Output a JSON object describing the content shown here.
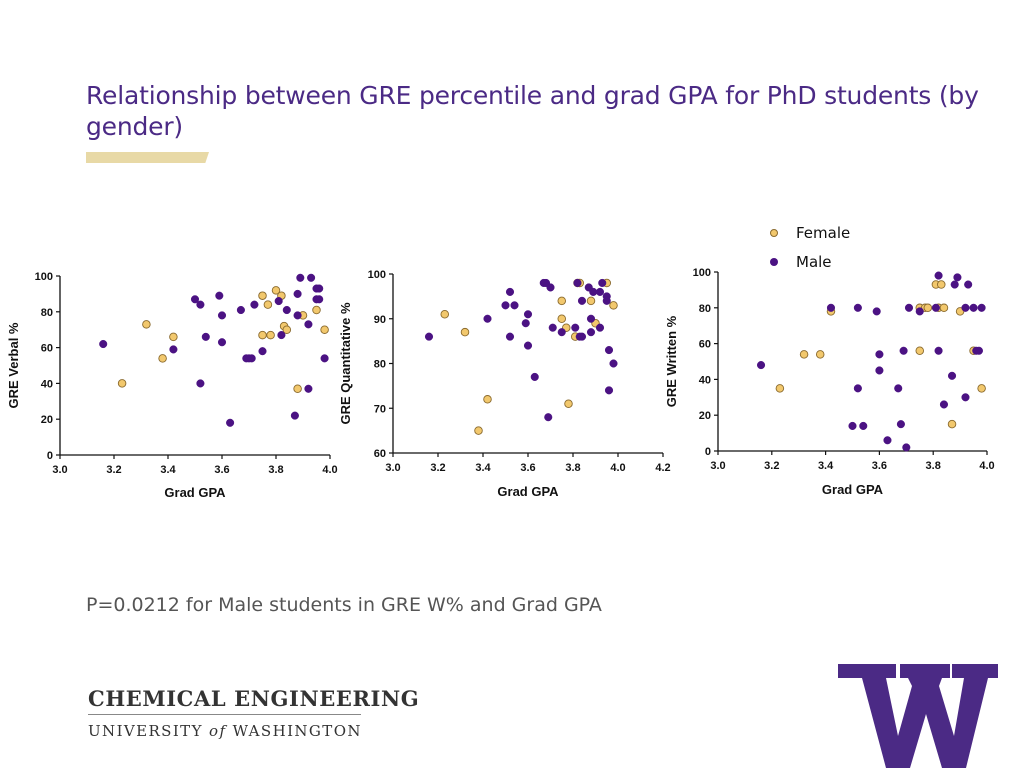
{
  "slide": {
    "title": "Relationship between GRE percentile and grad GPA for PhD students (by gender)",
    "pvalue_note": "P=0.0212 for Male students in GRE W% and Grad GPA",
    "footer_dept": "CHEMICAL ENGINEERING",
    "footer_univ_pre": "UNIVERSITY ",
    "footer_univ_of": "of",
    "footer_univ_post": " WASHINGTON",
    "logo_letter": "W"
  },
  "colors": {
    "title": "#4b2a85",
    "female": "#f2c86d",
    "female_stroke": "#8a6a2e",
    "male": "#4b1283",
    "accent_bar": "#e8d9a6",
    "logo": "#4b2a85"
  },
  "legend": {
    "female_label": "Female",
    "male_label": "Male"
  },
  "chart_data": [
    {
      "type": "scatter",
      "title": "",
      "xlabel": "Grad GPA",
      "ylabel": "GRE Verbal %",
      "xlim": [
        3.0,
        4.0
      ],
      "ylim": [
        0,
        100
      ],
      "xticks": [
        "3.0",
        "3.2",
        "3.4",
        "3.6",
        "3.8",
        "4.0"
      ],
      "yticks": [
        "0",
        "20",
        "40",
        "60",
        "80",
        "100"
      ],
      "series": [
        {
          "name": "Female",
          "points": [
            [
              3.23,
              40
            ],
            [
              3.32,
              73
            ],
            [
              3.38,
              54
            ],
            [
              3.42,
              66
            ],
            [
              3.75,
              89
            ],
            [
              3.75,
              67
            ],
            [
              3.77,
              84
            ],
            [
              3.78,
              67
            ],
            [
              3.8,
              92
            ],
            [
              3.82,
              89
            ],
            [
              3.83,
              72
            ],
            [
              3.84,
              70
            ],
            [
              3.88,
              37
            ],
            [
              3.9,
              78
            ],
            [
              3.95,
              81
            ],
            [
              3.98,
              70
            ]
          ]
        },
        {
          "name": "Male",
          "points": [
            [
              3.16,
              62
            ],
            [
              3.42,
              59
            ],
            [
              3.5,
              87
            ],
            [
              3.52,
              84
            ],
            [
              3.52,
              40
            ],
            [
              3.54,
              66
            ],
            [
              3.59,
              89
            ],
            [
              3.6,
              78
            ],
            [
              3.6,
              63
            ],
            [
              3.63,
              18
            ],
            [
              3.67,
              81
            ],
            [
              3.69,
              54
            ],
            [
              3.7,
              54
            ],
            [
              3.71,
              54
            ],
            [
              3.72,
              84
            ],
            [
              3.75,
              58
            ],
            [
              3.81,
              86
            ],
            [
              3.82,
              67
            ],
            [
              3.84,
              81
            ],
            [
              3.87,
              22
            ],
            [
              3.88,
              90
            ],
            [
              3.88,
              78
            ],
            [
              3.89,
              99
            ],
            [
              3.92,
              73
            ],
            [
              3.92,
              37
            ],
            [
              3.93,
              99
            ],
            [
              3.95,
              87
            ],
            [
              3.95,
              93
            ],
            [
              3.96,
              93
            ],
            [
              3.96,
              87
            ],
            [
              3.98,
              54
            ]
          ]
        }
      ]
    },
    {
      "type": "scatter",
      "title": "",
      "xlabel": "Grad GPA",
      "ylabel": "GRE Quantitative %",
      "xlim": [
        3.0,
        4.2
      ],
      "ylim": [
        60,
        100
      ],
      "xticks": [
        "3.0",
        "3.2",
        "3.4",
        "3.6",
        "3.8",
        "4.0",
        "4.2"
      ],
      "yticks": [
        "60",
        "70",
        "80",
        "90",
        "100"
      ],
      "series": [
        {
          "name": "Female",
          "points": [
            [
              3.23,
              91
            ],
            [
              3.32,
              87
            ],
            [
              3.38,
              65
            ],
            [
              3.42,
              72
            ],
            [
              3.75,
              94
            ],
            [
              3.75,
              90
            ],
            [
              3.77,
              88
            ],
            [
              3.78,
              71
            ],
            [
              3.81,
              86
            ],
            [
              3.82,
              98
            ],
            [
              3.83,
              98
            ],
            [
              3.88,
              94
            ],
            [
              3.9,
              89
            ],
            [
              3.95,
              98
            ],
            [
              3.98,
              93
            ]
          ]
        },
        {
          "name": "Male",
          "points": [
            [
              3.16,
              86
            ],
            [
              3.42,
              90
            ],
            [
              3.5,
              93
            ],
            [
              3.52,
              96
            ],
            [
              3.52,
              86
            ],
            [
              3.54,
              93
            ],
            [
              3.59,
              89
            ],
            [
              3.6,
              91
            ],
            [
              3.6,
              84
            ],
            [
              3.63,
              77
            ],
            [
              3.67,
              98
            ],
            [
              3.68,
              98
            ],
            [
              3.69,
              68
            ],
            [
              3.7,
              97
            ],
            [
              3.71,
              88
            ],
            [
              3.75,
              87
            ],
            [
              3.81,
              88
            ],
            [
              3.82,
              98
            ],
            [
              3.83,
              86
            ],
            [
              3.84,
              94
            ],
            [
              3.84,
              86
            ],
            [
              3.87,
              97
            ],
            [
              3.88,
              87
            ],
            [
              3.88,
              90
            ],
            [
              3.89,
              96
            ],
            [
              3.92,
              96
            ],
            [
              3.92,
              88
            ],
            [
              3.93,
              98
            ],
            [
              3.95,
              95
            ],
            [
              3.95,
              94
            ],
            [
              3.96,
              83
            ],
            [
              3.96,
              74
            ],
            [
              3.98,
              80
            ]
          ]
        }
      ]
    },
    {
      "type": "scatter",
      "title": "",
      "xlabel": "Grad GPA",
      "ylabel": "GRE Written %",
      "xlim": [
        3.0,
        4.0
      ],
      "ylim": [
        0,
        100
      ],
      "xticks": [
        "3.0",
        "3.2",
        "3.4",
        "3.6",
        "3.8",
        "4.0"
      ],
      "yticks": [
        "0",
        "20",
        "40",
        "60",
        "80",
        "100"
      ],
      "series": [
        {
          "name": "Female",
          "points": [
            [
              3.23,
              35
            ],
            [
              3.32,
              54
            ],
            [
              3.38,
              54
            ],
            [
              3.42,
              78
            ],
            [
              3.75,
              80
            ],
            [
              3.75,
              56
            ],
            [
              3.77,
              80
            ],
            [
              3.78,
              80
            ],
            [
              3.81,
              93
            ],
            [
              3.82,
              80
            ],
            [
              3.83,
              93
            ],
            [
              3.84,
              80
            ],
            [
              3.87,
              15
            ],
            [
              3.9,
              78
            ],
            [
              3.95,
              56
            ],
            [
              3.98,
              35
            ]
          ]
        },
        {
          "name": "Male",
          "points": [
            [
              3.16,
              48
            ],
            [
              3.42,
              80
            ],
            [
              3.5,
              14
            ],
            [
              3.52,
              35
            ],
            [
              3.52,
              80
            ],
            [
              3.54,
              14
            ],
            [
              3.59,
              78
            ],
            [
              3.6,
              54
            ],
            [
              3.6,
              45
            ],
            [
              3.63,
              6
            ],
            [
              3.67,
              35
            ],
            [
              3.68,
              15
            ],
            [
              3.69,
              56
            ],
            [
              3.7,
              2
            ],
            [
              3.71,
              80
            ],
            [
              3.75,
              78
            ],
            [
              3.81,
              80
            ],
            [
              3.82,
              98
            ],
            [
              3.82,
              56
            ],
            [
              3.84,
              26
            ],
            [
              3.87,
              42
            ],
            [
              3.88,
              93
            ],
            [
              3.89,
              97
            ],
            [
              3.92,
              80
            ],
            [
              3.92,
              30
            ],
            [
              3.93,
              93
            ],
            [
              3.95,
              80
            ],
            [
              3.96,
              56
            ],
            [
              3.97,
              56
            ],
            [
              3.98,
              80
            ]
          ]
        }
      ]
    }
  ]
}
